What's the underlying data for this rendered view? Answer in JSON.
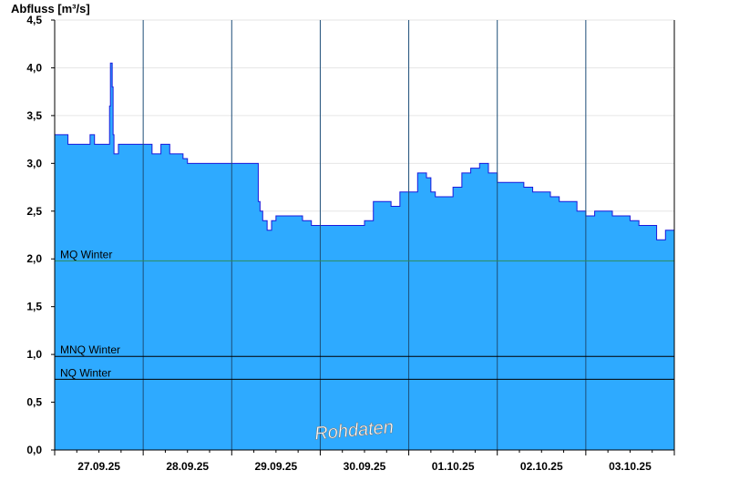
{
  "chart_data": {
    "type": "area",
    "ylabel": "Abfluss [m³/s]",
    "ylim": [
      0,
      4.5
    ],
    "yticks": [
      "0,0",
      "0,5",
      "1,0",
      "1,5",
      "2,0",
      "2,5",
      "3,0",
      "3,5",
      "4,0",
      "4,5"
    ],
    "xlim_days": [
      0,
      7
    ],
    "xticks": [
      "27.09.25",
      "28.09.25",
      "29.09.25",
      "30.09.25",
      "01.10.25",
      "02.10.25",
      "03.10.25"
    ],
    "fill_color": "#2eaaff",
    "line_color": "#1a1adc",
    "series": [
      {
        "x": [
          0.0,
          0.05,
          0.1,
          0.15,
          0.2,
          0.25,
          0.3,
          0.4,
          0.45,
          0.5,
          0.55,
          0.6,
          0.62,
          0.63,
          0.64,
          0.65,
          0.66,
          0.67,
          0.7,
          0.72,
          0.75,
          0.8,
          0.85,
          0.9,
          1.0,
          1.1,
          1.2,
          1.3,
          1.4,
          1.45,
          1.5,
          1.6,
          1.7,
          1.8,
          1.9,
          2.0,
          2.1,
          2.2,
          2.3,
          2.32,
          2.35,
          2.4,
          2.45,
          2.5,
          2.6,
          2.7,
          2.8,
          2.9,
          3.0,
          3.1,
          3.2,
          3.3,
          3.4,
          3.5,
          3.6,
          3.7,
          3.8,
          3.9,
          4.0,
          4.1,
          4.2,
          4.25,
          4.3,
          4.4,
          4.5,
          4.6,
          4.7,
          4.8,
          4.9,
          5.0,
          5.1,
          5.2,
          5.3,
          5.4,
          5.5,
          5.6,
          5.7,
          5.8,
          5.9,
          6.0,
          6.1,
          6.2,
          6.3,
          6.4,
          6.5,
          6.55,
          6.6,
          6.7,
          6.8,
          6.9,
          7.0
        ],
        "y": [
          3.3,
          3.3,
          3.3,
          3.2,
          3.2,
          3.2,
          3.2,
          3.3,
          3.2,
          3.2,
          3.2,
          3.2,
          3.6,
          4.05,
          4.05,
          3.8,
          3.3,
          3.1,
          3.1,
          3.2,
          3.2,
          3.2,
          3.2,
          3.2,
          3.2,
          3.1,
          3.2,
          3.1,
          3.1,
          3.05,
          3.0,
          3.0,
          3.0,
          3.0,
          3.0,
          3.0,
          3.0,
          3.0,
          2.6,
          2.5,
          2.4,
          2.3,
          2.4,
          2.45,
          2.45,
          2.45,
          2.4,
          2.35,
          2.35,
          2.35,
          2.35,
          2.35,
          2.35,
          2.4,
          2.6,
          2.6,
          2.55,
          2.7,
          2.7,
          2.9,
          2.85,
          2.7,
          2.65,
          2.65,
          2.75,
          2.9,
          2.95,
          3.0,
          2.9,
          2.8,
          2.8,
          2.8,
          2.75,
          2.7,
          2.7,
          2.65,
          2.6,
          2.6,
          2.5,
          2.45,
          2.5,
          2.5,
          2.45,
          2.45,
          2.4,
          2.4,
          2.35,
          2.35,
          2.2,
          2.3,
          2.3
        ]
      }
    ],
    "reference_lines": [
      {
        "label": "MQ Winter",
        "value": 1.98,
        "color": "#2e8b57"
      },
      {
        "label": "MNQ Winter",
        "value": 0.98,
        "color": "#000000"
      },
      {
        "label": "NQ Winter",
        "value": 0.74,
        "color": "#000000"
      }
    ],
    "watermark": "Rohdaten",
    "grid": true
  }
}
